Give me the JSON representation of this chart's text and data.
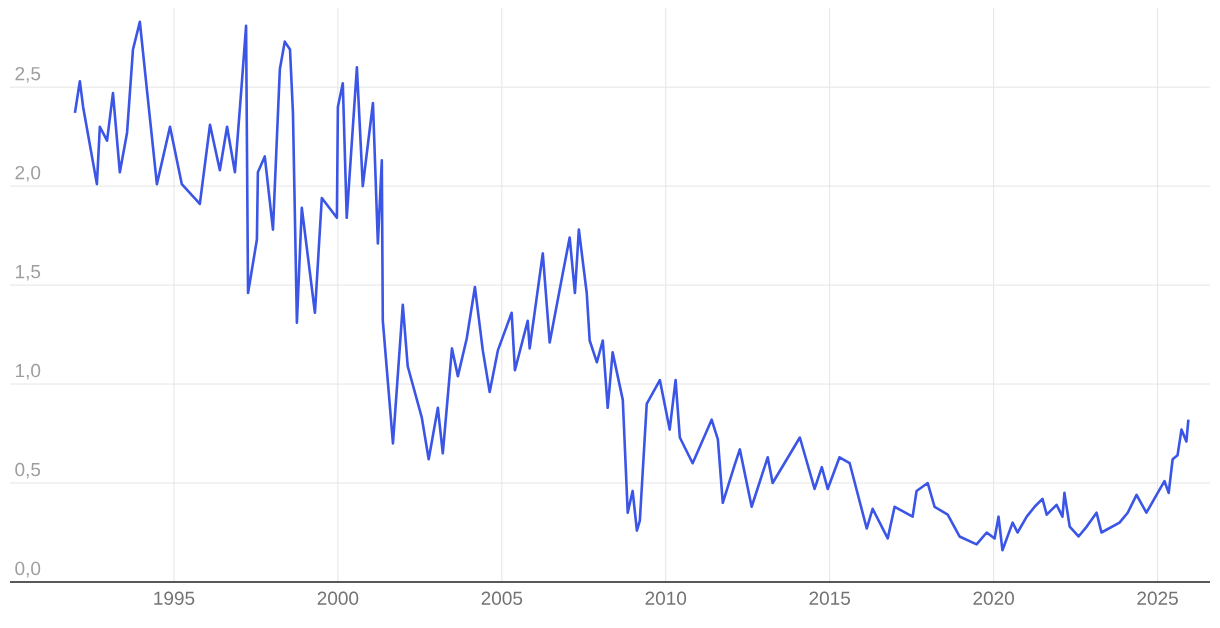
{
  "chart_data": {
    "type": "line",
    "color": "#3b55e6",
    "line_style": "solid",
    "grid": true,
    "xlim": [
      1990.0,
      2026.6
    ],
    "ylim": [
      0,
      2.9
    ],
    "xticks": [
      1995,
      2000,
      2005,
      2010,
      2015,
      2020,
      2025
    ],
    "yticks": [
      {
        "value": 0,
        "label": "0,0"
      },
      {
        "value": 0.5,
        "label": "0,5"
      },
      {
        "value": 1.0,
        "label": "1,0"
      },
      {
        "value": 1.5,
        "label": "1,5"
      },
      {
        "value": 2.0,
        "label": "2,0"
      },
      {
        "value": 2.5,
        "label": "2,5"
      }
    ],
    "x": [
      1991.98,
      1992.13,
      1992.23,
      1992.65,
      1992.74,
      1992.96,
      1993.14,
      1993.35,
      1993.57,
      1993.75,
      1993.96,
      1994.18,
      1994.48,
      1994.88,
      1995.24,
      1995.79,
      1996.1,
      1996.4,
      1996.62,
      1996.86,
      1997.07,
      1997.2,
      1997.26,
      1997.53,
      1997.56,
      1997.77,
      1998.02,
      1998.23,
      1998.38,
      1998.54,
      1998.63,
      1998.75,
      1998.9,
      1999.3,
      1999.51,
      1999.97,
      2000.0,
      2000.15,
      2000.27,
      2000.58,
      2000.76,
      2001.07,
      2001.22,
      2001.34,
      2001.37,
      2001.68,
      2001.98,
      2002.13,
      2002.56,
      2002.77,
      2003.05,
      2003.2,
      2003.48,
      2003.66,
      2003.93,
      2004.18,
      2004.42,
      2004.63,
      2004.88,
      2005.3,
      2005.4,
      2005.79,
      2005.85,
      2006.25,
      2006.46,
      2006.86,
      2007.07,
      2007.23,
      2007.35,
      2007.59,
      2007.68,
      2007.9,
      2008.08,
      2008.23,
      2008.38,
      2008.69,
      2008.84,
      2008.99,
      2009.12,
      2009.21,
      2009.42,
      2009.82,
      2010.12,
      2010.3,
      2010.43,
      2010.82,
      2011.4,
      2011.59,
      2011.74,
      2012.1,
      2012.26,
      2012.62,
      2013.11,
      2013.26,
      2014.09,
      2014.54,
      2014.76,
      2014.94,
      2015.3,
      2015.61,
      2016.13,
      2016.31,
      2016.77,
      2016.98,
      2017.53,
      2017.65,
      2017.99,
      2018.2,
      2018.6,
      2018.96,
      2019.48,
      2019.79,
      2020.03,
      2020.15,
      2020.27,
      2020.58,
      2020.73,
      2021.01,
      2021.25,
      2021.49,
      2021.62,
      2021.92,
      2022.1,
      2022.16,
      2022.32,
      2022.59,
      2022.84,
      2023.14,
      2023.29,
      2023.84,
      2024.09,
      2024.36,
      2024.66,
      2024.97,
      2025.21,
      2025.34,
      2025.46,
      2025.61,
      2025.73,
      2025.88,
      2025.94
    ],
    "values": [
      2.37,
      2.53,
      2.4,
      2.01,
      2.3,
      2.23,
      2.47,
      2.07,
      2.27,
      2.69,
      2.83,
      2.48,
      2.01,
      2.3,
      2.01,
      1.91,
      2.31,
      2.08,
      2.3,
      2.07,
      2.52,
      2.81,
      1.46,
      1.73,
      2.07,
      2.15,
      1.78,
      2.59,
      2.73,
      2.69,
      2.37,
      1.31,
      1.89,
      1.36,
      1.94,
      1.84,
      2.4,
      2.52,
      1.84,
      2.6,
      2.0,
      2.42,
      1.71,
      2.13,
      1.32,
      0.7,
      1.4,
      1.09,
      0.83,
      0.62,
      0.88,
      0.65,
      1.18,
      1.04,
      1.23,
      1.49,
      1.17,
      0.96,
      1.17,
      1.36,
      1.07,
      1.32,
      1.18,
      1.66,
      1.21,
      1.56,
      1.74,
      1.46,
      1.78,
      1.46,
      1.22,
      1.11,
      1.22,
      0.88,
      1.16,
      0.92,
      0.35,
      0.46,
      0.26,
      0.31,
      0.9,
      1.02,
      0.77,
      1.02,
      0.73,
      0.6,
      0.82,
      0.72,
      0.4,
      0.59,
      0.67,
      0.38,
      0.63,
      0.5,
      0.73,
      0.47,
      0.58,
      0.47,
      0.63,
      0.6,
      0.27,
      0.37,
      0.22,
      0.38,
      0.33,
      0.46,
      0.5,
      0.38,
      0.34,
      0.23,
      0.19,
      0.25,
      0.22,
      0.33,
      0.16,
      0.3,
      0.25,
      0.33,
      0.38,
      0.42,
      0.34,
      0.39,
      0.33,
      0.45,
      0.28,
      0.23,
      0.28,
      0.35,
      0.25,
      0.3,
      0.35,
      0.44,
      0.35,
      0.44,
      0.51,
      0.45,
      0.62,
      0.64,
      0.77,
      0.71,
      0.82
    ]
  }
}
